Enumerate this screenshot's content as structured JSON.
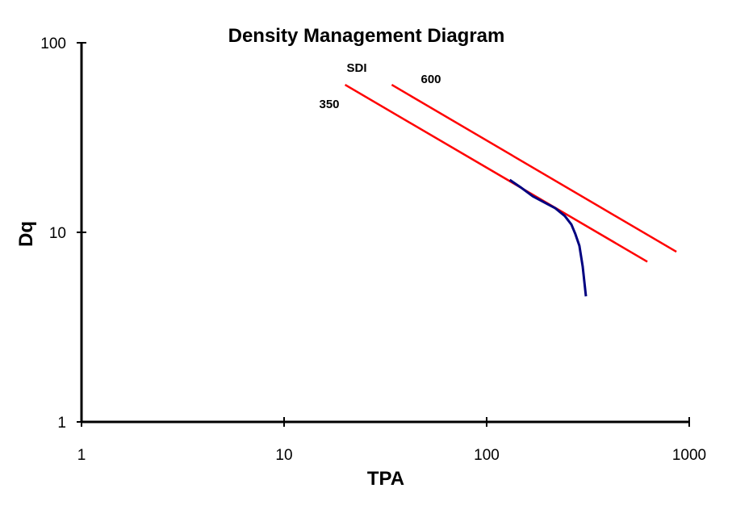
{
  "chart_data": {
    "type": "line",
    "title": "Density Management Diagram",
    "xlabel": "TPA",
    "ylabel": "Dq",
    "xscale": "log",
    "yscale": "log",
    "xlim": [
      1,
      1000
    ],
    "ylim": [
      1,
      100
    ],
    "xticks": [
      "1",
      "10",
      "100",
      "1000"
    ],
    "yticks": [
      "1",
      "10",
      "100"
    ],
    "grid": false,
    "annotations": {
      "sdi": "SDI",
      "sdi350": "350",
      "sdi600": "600"
    },
    "series": [
      {
        "name": "350",
        "color": "#ff0000",
        "x": [
          20,
          621
        ],
        "y": [
          60,
          7
        ]
      },
      {
        "name": "600",
        "color": "#ff0000",
        "x": [
          34,
          864
        ],
        "y": [
          60,
          7.9
        ]
      },
      {
        "color": "#000080",
        "x": [
          130,
          147,
          169,
          218,
          243,
          262,
          274,
          287,
          298,
          309
        ],
        "y": [
          18.9,
          17.3,
          15.5,
          13.4,
          12.2,
          11.0,
          9.8,
          8.5,
          6.6,
          4.6
        ]
      }
    ]
  }
}
